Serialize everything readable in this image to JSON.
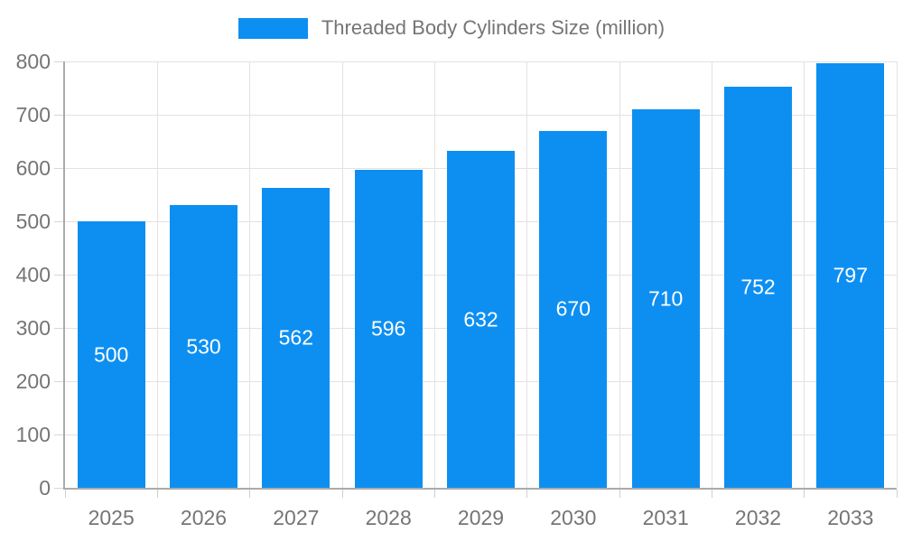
{
  "chart_data": {
    "type": "bar",
    "title": "Threaded Body Cylinders Size (million)",
    "categories": [
      "2025",
      "2026",
      "2027",
      "2028",
      "2029",
      "2030",
      "2031",
      "2032",
      "2033"
    ],
    "values": [
      500,
      530,
      562,
      596,
      632,
      670,
      710,
      752,
      797
    ],
    "xlabel": "",
    "ylabel": "",
    "ylim": [
      0,
      800
    ],
    "ytick_interval": 100,
    "grid": true,
    "legend_position": "top",
    "colors": {
      "bar": "#0d8ff2",
      "grid": "#e2e2e2",
      "axis": "#ababab",
      "tick_label": "#757575",
      "bar_label": "#ffffff"
    }
  }
}
